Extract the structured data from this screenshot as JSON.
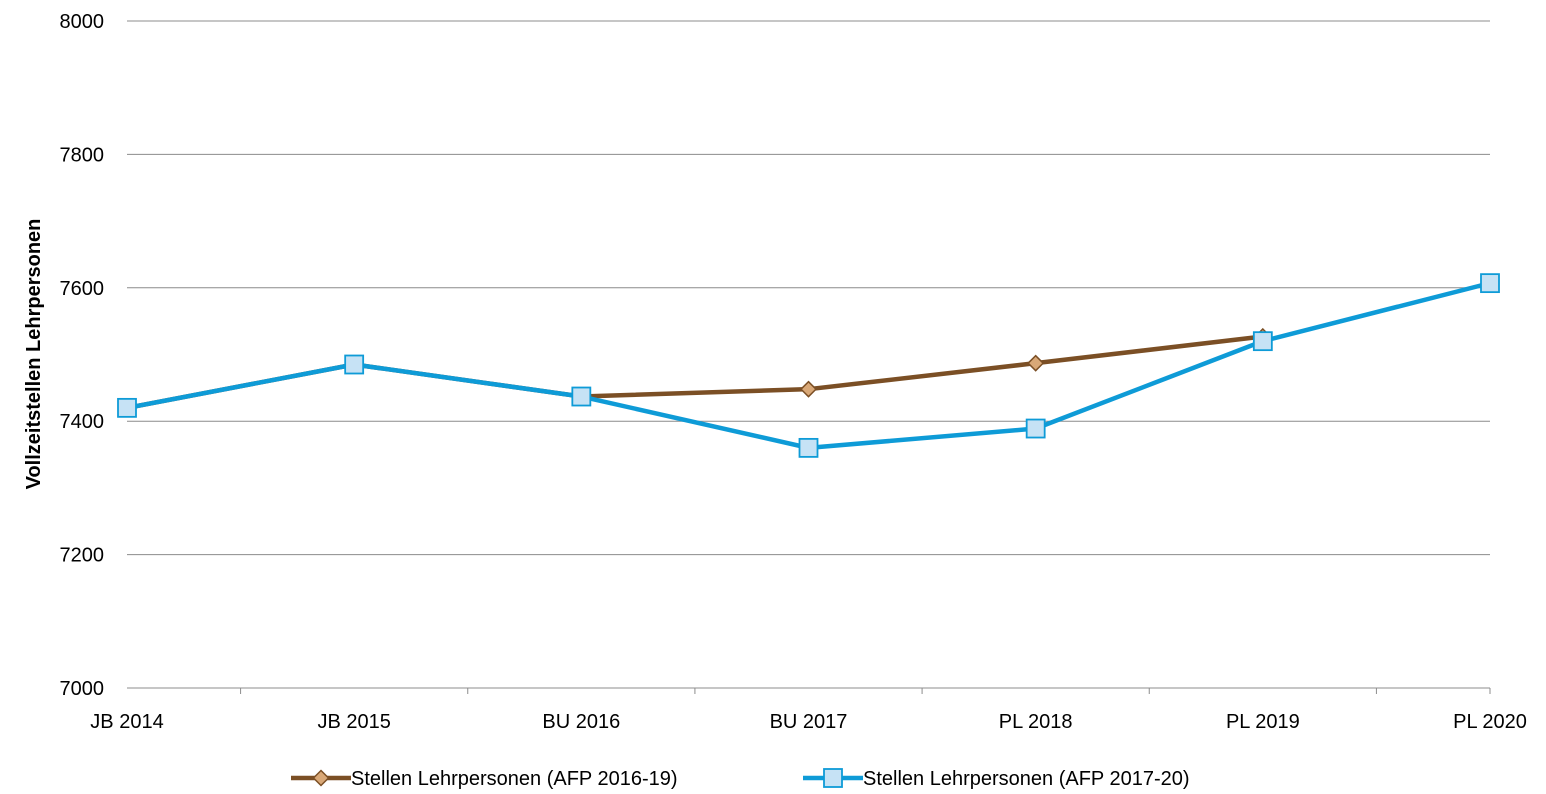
{
  "chart_data": {
    "type": "line",
    "categories": [
      "JB 2014",
      "JB 2015",
      "BU 2016",
      "BU 2017",
      "PL 2018",
      "PL 2019",
      "PL 2020"
    ],
    "ylabel": "Vollzeitstellen Lehrpersonen",
    "ylim": [
      7000,
      8000
    ],
    "yticks": [
      7000,
      7200,
      7400,
      7600,
      7800,
      8000
    ],
    "grid": true,
    "legend_position": "bottom",
    "series": [
      {
        "name": "Stellen Lehrpersonen (AFP 2016-19)",
        "color": "#7b4f25",
        "marker_fill": "#d9a877",
        "marker": "diamond",
        "values": [
          7420,
          7485,
          7437,
          7448,
          7487,
          7527,
          null
        ]
      },
      {
        "name": "Stellen Lehrpersonen (AFP 2017-20)",
        "color": "#0e9bd7",
        "marker_fill": "#c6e2f5",
        "marker": "square",
        "values": [
          7420,
          7485,
          7437,
          7360,
          7389,
          7520,
          7607
        ]
      }
    ]
  }
}
